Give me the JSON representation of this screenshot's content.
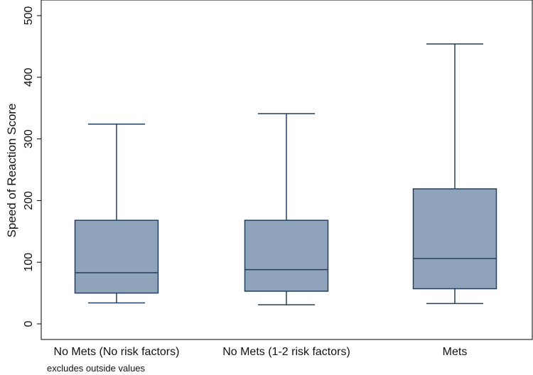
{
  "chart_data": {
    "type": "box",
    "title": "",
    "xlabel": "",
    "ylabel": "Speed of Reaction Score",
    "note": "excludes outside values",
    "ylim": [
      0,
      500
    ],
    "yticks": [
      0,
      100,
      200,
      300,
      400,
      500
    ],
    "grid": false,
    "colors": {
      "box_fill": "#8fa4bb",
      "box_stroke": "#23405e"
    },
    "categories": [
      "No Mets (No risk factors)",
      "No Mets (1-2 risk factors)",
      "Mets"
    ],
    "boxes": [
      {
        "whisker_low": 34,
        "q1": 50,
        "median": 83,
        "q3": 168,
        "whisker_high": 324
      },
      {
        "whisker_low": 31,
        "q1": 53,
        "median": 88,
        "q3": 168,
        "whisker_high": 341
      },
      {
        "whisker_low": 33,
        "q1": 57,
        "median": 106,
        "q3": 219,
        "whisker_high": 454
      }
    ]
  }
}
